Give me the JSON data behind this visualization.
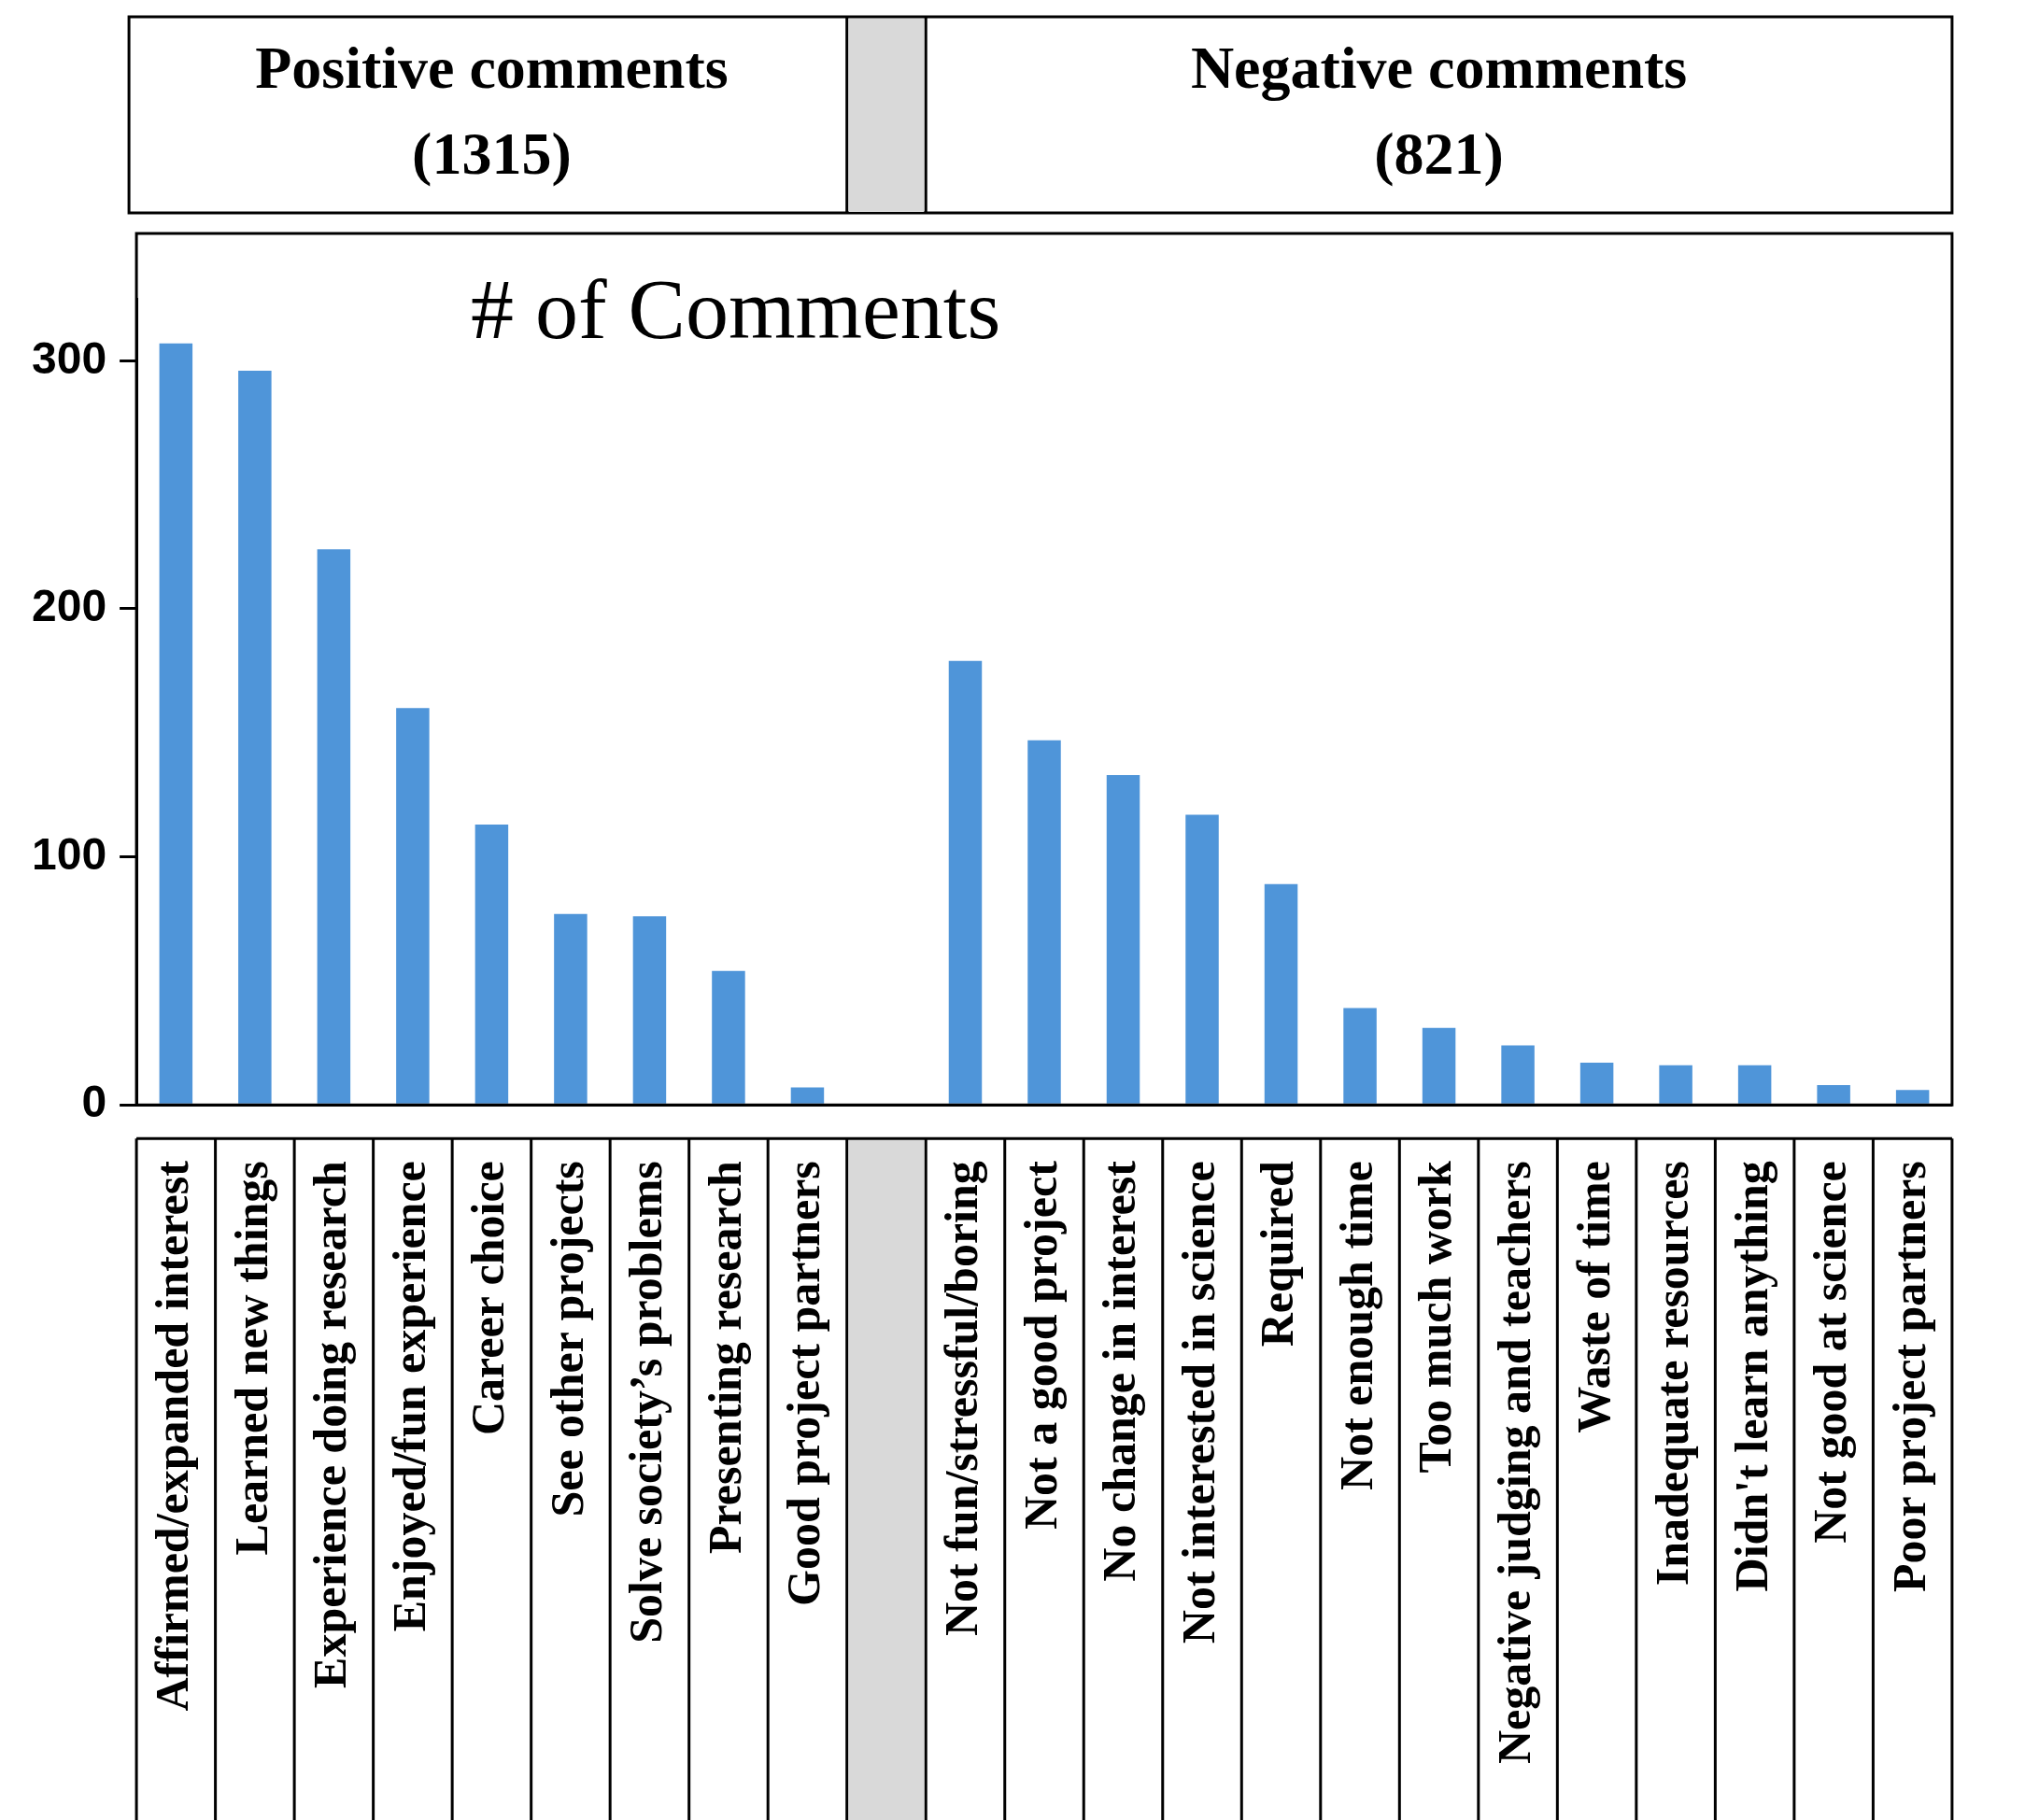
{
  "chart_data": {
    "type": "bar",
    "title": "# of Comments",
    "categories": [
      "Affirmed/expanded interest",
      "Learned new things",
      "Experience doing research",
      "Enjoyed/fun experience",
      "Career choice",
      "See other projects",
      "Solve society’s problems",
      "Presenting research",
      "Good project partners",
      null,
      "Not fun/stressful/boring",
      "Not a good project",
      "No change in interest",
      "Not interested in science",
      "Required",
      "Not enough time",
      "Too much work",
      "Negative judging and teachers",
      "Waste of time",
      "Inadequate resources",
      "Didn't learn anything",
      "Not good at science",
      "Poor project partners"
    ],
    "values": [
      307,
      296,
      224,
      160,
      113,
      77,
      76,
      54,
      7,
      null,
      179,
      147,
      133,
      117,
      89,
      39,
      31,
      24,
      17,
      16,
      16,
      8,
      6
    ],
    "color": "#4f95d9",
    "ylim": [
      0,
      325
    ],
    "yticks": [
      0,
      100,
      200,
      300
    ],
    "grid": false,
    "legend": false,
    "annotations": [
      "Positive comments\n(1315)",
      "Negative comments\n(821)"
    ]
  }
}
